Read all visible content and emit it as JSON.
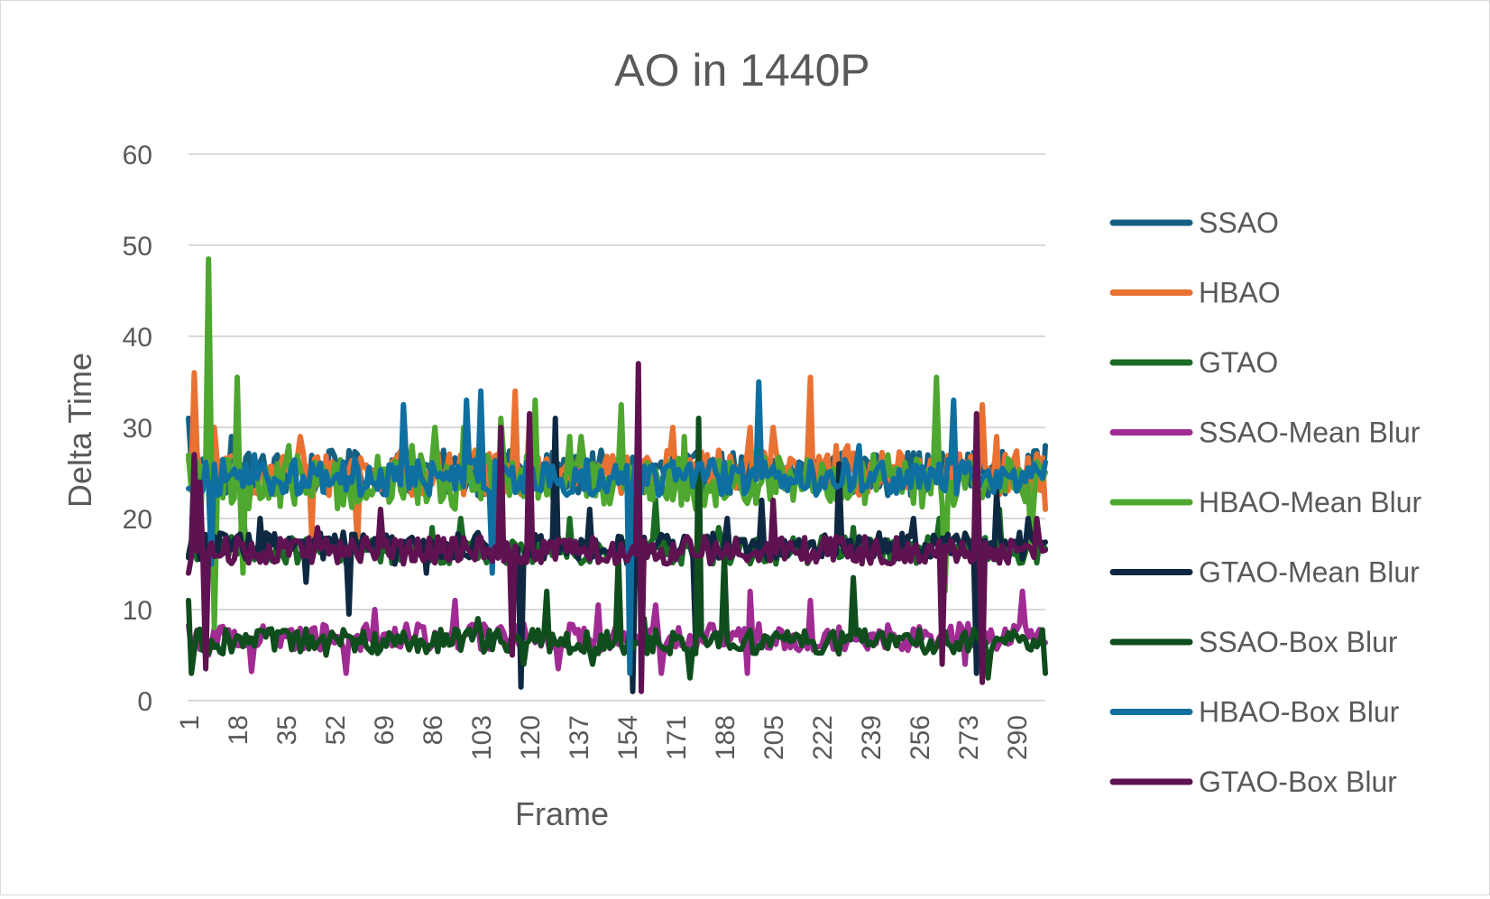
{
  "chart_data": {
    "type": "line",
    "title": "AO in 1440P",
    "xlabel": "Frame",
    "ylabel": "Delta Time",
    "ylim": [
      0,
      60
    ],
    "yticks": [
      "0",
      "10",
      "20",
      "30",
      "40",
      "50",
      "60"
    ],
    "xtick_labels": [
      "1",
      "18",
      "35",
      "52",
      "69",
      "86",
      "103",
      "120",
      "137",
      "154",
      "171",
      "188",
      "205",
      "222",
      "239",
      "256",
      "273",
      "290"
    ],
    "x_range": [
      1,
      300
    ],
    "grid": "horizontal",
    "legend_position": "right",
    "series": [
      {
        "name": "SSAO",
        "color": "#156082",
        "base": 25,
        "spread": 2.5,
        "spikes": [
          [
            1,
            31
          ],
          [
            16,
            29
          ],
          [
            46,
            24
          ],
          [
            60,
            27
          ],
          [
            76,
            23
          ],
          [
            95,
            26
          ],
          [
            110,
            22
          ],
          [
            130,
            26
          ],
          [
            150,
            24
          ],
          [
            170,
            27
          ],
          [
            195,
            23
          ],
          [
            215,
            26
          ],
          [
            240,
            27
          ],
          [
            265,
            25
          ],
          [
            290,
            26
          ],
          [
            300,
            28
          ]
        ]
      },
      {
        "name": "HBAO",
        "color": "#E97132",
        "base": 25,
        "spread": 2.5,
        "spikes": [
          [
            3,
            36
          ],
          [
            10,
            30
          ],
          [
            40,
            29
          ],
          [
            44,
            18
          ],
          [
            60,
            17
          ],
          [
            115,
            34
          ],
          [
            120,
            31
          ],
          [
            170,
            30
          ],
          [
            197,
            30
          ],
          [
            205,
            30
          ],
          [
            218,
            35.5
          ],
          [
            227,
            28
          ],
          [
            231,
            28
          ],
          [
            278,
            32.5
          ],
          [
            283,
            29
          ],
          [
            300,
            21
          ]
        ]
      },
      {
        "name": "GTAO",
        "color": "#196B24",
        "base": 16.5,
        "spread": 1.5,
        "spikes": [
          [
            1,
            16
          ],
          [
            20,
            21
          ],
          [
            55,
            18
          ],
          [
            86,
            19
          ],
          [
            96,
            20
          ],
          [
            134,
            20
          ],
          [
            152,
            18
          ],
          [
            164,
            22
          ],
          [
            186,
            19
          ],
          [
            206,
            15
          ],
          [
            222,
            18
          ],
          [
            233,
            19
          ],
          [
            250,
            16
          ],
          [
            263,
            20
          ],
          [
            284,
            21
          ],
          [
            296,
            18
          ]
        ]
      },
      {
        "name": "SSAO-Mean Blur",
        "color": "#A02B93",
        "base": 7,
        "spread": 1.5,
        "spikes": [
          [
            8,
            5
          ],
          [
            23,
            3.2
          ],
          [
            45,
            8
          ],
          [
            56,
            3
          ],
          [
            66,
            10
          ],
          [
            94,
            11
          ],
          [
            130,
            3.5
          ],
          [
            144,
            10.5
          ],
          [
            164,
            10.5
          ],
          [
            166,
            3
          ],
          [
            172,
            8
          ],
          [
            196,
            3
          ],
          [
            197,
            12
          ],
          [
            218,
            11
          ],
          [
            272,
            4
          ],
          [
            292,
            12
          ]
        ]
      },
      {
        "name": "HBAO-Mean Blur",
        "color": "#4EA72E",
        "base": 24,
        "spread": 3,
        "spikes": [
          [
            5,
            18
          ],
          [
            8,
            48.5
          ],
          [
            10,
            8
          ],
          [
            18,
            35.5
          ],
          [
            20,
            14
          ],
          [
            36,
            28
          ],
          [
            79,
            28
          ],
          [
            87,
            30
          ],
          [
            97,
            30
          ],
          [
            110,
            31
          ],
          [
            122,
            33
          ],
          [
            134,
            29
          ],
          [
            138,
            29
          ],
          [
            152,
            32.5
          ],
          [
            174,
            29
          ],
          [
            201,
            24
          ],
          [
            212,
            22
          ],
          [
            262,
            35.5
          ],
          [
            265,
            12
          ],
          [
            284,
            23
          ],
          [
            295,
            17
          ]
        ]
      },
      {
        "name": "GTAO-Mean Blur",
        "color": "#0E2841",
        "base": 17,
        "spread": 1.5,
        "spikes": [
          [
            3,
            27
          ],
          [
            26,
            20
          ],
          [
            42,
            13
          ],
          [
            57,
            9.5
          ],
          [
            73,
            15
          ],
          [
            84,
            14
          ],
          [
            117,
            1.5
          ],
          [
            129,
            31
          ],
          [
            141,
            21
          ],
          [
            154,
            15
          ],
          [
            156,
            1
          ],
          [
            178,
            6
          ],
          [
            189,
            20
          ],
          [
            201,
            22
          ],
          [
            228,
            26
          ],
          [
            254,
            20
          ],
          [
            276,
            3
          ],
          [
            283,
            23
          ],
          [
            294,
            20
          ]
        ]
      },
      {
        "name": "SSAO-Box Blur",
        "color": "#0F4D1D",
        "base": 6.5,
        "spread": 1.4,
        "spikes": [
          [
            1,
            11
          ],
          [
            2,
            3
          ],
          [
            49,
            5
          ],
          [
            102,
            9
          ],
          [
            118,
            4
          ],
          [
            126,
            12
          ],
          [
            142,
            4
          ],
          [
            151,
            16
          ],
          [
            160,
            9
          ],
          [
            176,
            2.5
          ],
          [
            179,
            31
          ],
          [
            188,
            16
          ],
          [
            233,
            13.5
          ],
          [
            280,
            2.5
          ],
          [
            300,
            3
          ]
        ]
      },
      {
        "name": "HBAO-Box Blur",
        "color": "#0F6FA0",
        "base": 24.5,
        "spread": 2,
        "spikes": [
          [
            9,
            15
          ],
          [
            24,
            27
          ],
          [
            27,
            26
          ],
          [
            76,
            32.5
          ],
          [
            98,
            33
          ],
          [
            103,
            34
          ],
          [
            107,
            14
          ],
          [
            126,
            26
          ],
          [
            152,
            25
          ],
          [
            155,
            3
          ],
          [
            176,
            26
          ],
          [
            200,
            35
          ],
          [
            224,
            25
          ],
          [
            235,
            28
          ],
          [
            268,
            33
          ],
          [
            281,
            24
          ],
          [
            298,
            25
          ]
        ]
      },
      {
        "name": "GTAO-Box Blur",
        "color": "#5F1251",
        "base": 16.5,
        "spread": 1.5,
        "spikes": [
          [
            1,
            14
          ],
          [
            3,
            27
          ],
          [
            5,
            24
          ],
          [
            7,
            3.5
          ],
          [
            25,
            16
          ],
          [
            46,
            19
          ],
          [
            68,
            21
          ],
          [
            110,
            30
          ],
          [
            114,
            5
          ],
          [
            120,
            31.5
          ],
          [
            140,
            16
          ],
          [
            158,
            37
          ],
          [
            159,
            1
          ],
          [
            162,
            17
          ],
          [
            205,
            22
          ],
          [
            227,
            18
          ],
          [
            264,
            4
          ],
          [
            276,
            31.5
          ],
          [
            278,
            2
          ],
          [
            297,
            20
          ]
        ]
      }
    ]
  }
}
